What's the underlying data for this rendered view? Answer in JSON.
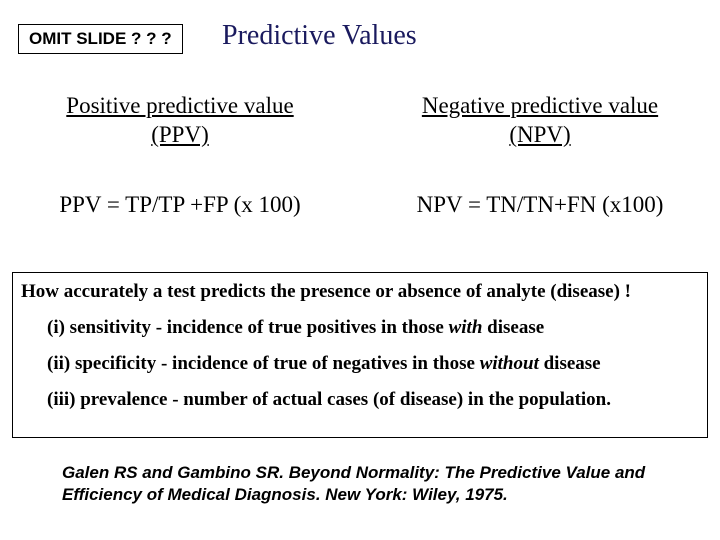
{
  "omit_label": "OMIT SLIDE ? ? ?",
  "title": "Predictive Values",
  "left": {
    "heading_line1": "Positive predictive value",
    "heading_line2": "(PPV)",
    "formula": "PPV = TP/TP +FP (x 100)"
  },
  "right": {
    "heading_line1": "Negative predictive value",
    "heading_line2": "(NPV)",
    "formula": "NPV = TN/TN+FN (x100)"
  },
  "definitions": {
    "intro": "How accurately a test predicts the presence or absence of analyte (disease) !",
    "item1_pre": "(i) sensitivity - incidence of true positives in those ",
    "item1_em": "with",
    "item1_post": " disease",
    "item2_pre": "(ii) specificity - incidence of true of negatives in those ",
    "item2_em": "without",
    "item2_post": " disease",
    "item3": "(iii) prevalence - number of actual cases (of disease) in the population."
  },
  "citation": "Galen RS and Gambino SR. Beyond Normality: The Predictive Value and Efficiency of Medical Diagnosis. New York: Wiley, 1975.",
  "colors": {
    "title_color": "#1a1a5e",
    "text_color": "#000000",
    "background": "#ffffff",
    "border_color": "#000000"
  },
  "fonts": {
    "serif": "Times New Roman",
    "sans": "Arial",
    "title_size": 28,
    "body_size": 23,
    "def_size": 19,
    "cite_size": 17
  }
}
